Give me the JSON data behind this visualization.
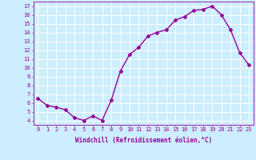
{
  "x": [
    0,
    1,
    2,
    3,
    4,
    5,
    6,
    7,
    8,
    9,
    10,
    11,
    12,
    13,
    14,
    15,
    16,
    17,
    18,
    19,
    20,
    21,
    22,
    23
  ],
  "y": [
    6.5,
    5.7,
    5.5,
    5.2,
    4.3,
    4.0,
    4.5,
    4.0,
    6.3,
    9.6,
    11.5,
    12.3,
    13.6,
    14.0,
    14.3,
    15.4,
    15.8,
    16.5,
    16.6,
    17.0,
    16.0,
    14.3,
    11.7,
    10.3
  ],
  "line_color": "#990099",
  "marker": "D",
  "marker_size": 2,
  "linewidth": 1.0,
  "xlabel": "Windchill (Refroidissement éolien,°C)",
  "ylabel_ticks": [
    4,
    5,
    6,
    7,
    8,
    9,
    10,
    11,
    12,
    13,
    14,
    15,
    16,
    17
  ],
  "xlim": [
    -0.5,
    23.5
  ],
  "ylim": [
    3.5,
    17.5
  ],
  "bg_color": "#cceeff",
  "grid_color": "#ffffff",
  "tick_color": "#990099",
  "label_color": "#990099",
  "font_family": "monospace",
  "tick_fontsize": 5.0,
  "xlabel_fontsize": 5.5
}
